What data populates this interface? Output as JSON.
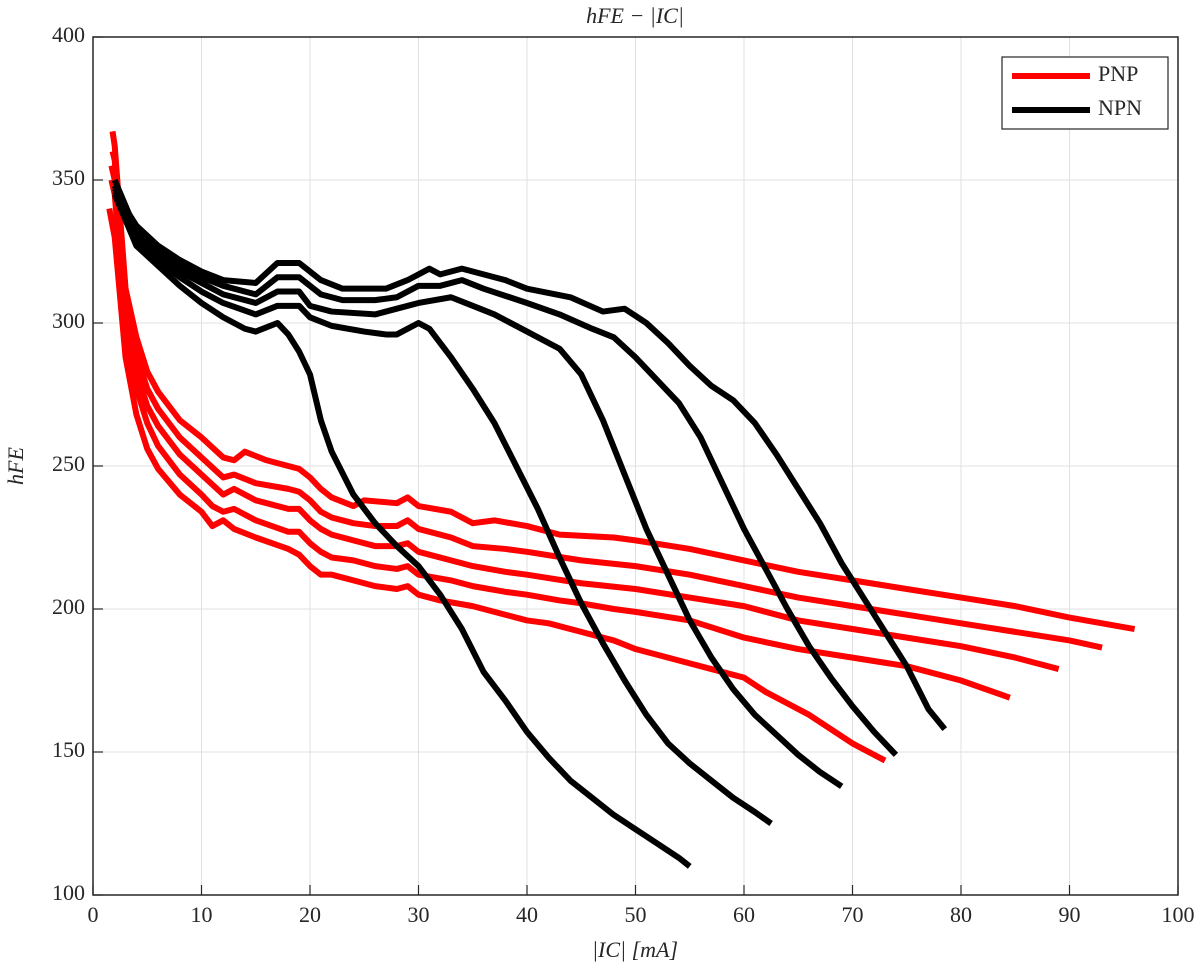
{
  "chart_data": {
    "type": "line",
    "title": "hFE − |IC|",
    "xlabel": "|IC| [mA]",
    "ylabel": "hFE",
    "xlim": [
      0,
      100
    ],
    "xticks": [
      0,
      10,
      20,
      30,
      40,
      50,
      60,
      70,
      80,
      90,
      100
    ],
    "ylim": [
      100,
      400
    ],
    "yticks": [
      100,
      150,
      200,
      250,
      300,
      350,
      400
    ],
    "grid": true,
    "legend": "upper right",
    "series": [
      {
        "name": "PNP",
        "color": "#ff0000",
        "x": [
          1.5,
          2,
          3,
          4,
          5,
          6,
          8,
          10,
          11,
          12,
          13,
          15,
          18,
          19,
          20,
          21,
          22,
          24,
          26,
          28,
          29,
          30,
          32,
          35,
          38,
          40,
          42,
          45,
          48,
          50,
          52,
          55,
          58,
          60,
          62,
          64,
          66,
          68,
          70,
          72,
          73
        ],
        "values": [
          340,
          330,
          288,
          268,
          256,
          249,
          240,
          234,
          229,
          231,
          228,
          225,
          221,
          219,
          215,
          212,
          212,
          210,
          208,
          207,
          208,
          205,
          203,
          201,
          198,
          196,
          195,
          192,
          189,
          186,
          184,
          181,
          178,
          176,
          171,
          167,
          163,
          158,
          153,
          149,
          147
        ]
      },
      {
        "name": "PNP",
        "color": "#ff0000",
        "x": [
          1.7,
          2,
          3,
          4,
          5,
          6,
          8,
          10,
          11,
          12,
          13,
          15,
          18,
          19,
          20,
          21,
          22,
          24,
          26,
          28,
          29,
          30,
          33,
          35,
          38,
          40,
          43,
          45,
          48,
          50,
          55,
          60,
          65,
          70,
          75,
          80,
          84.5
        ],
        "values": [
          350,
          345,
          300,
          277,
          265,
          257,
          247,
          240,
          236,
          234,
          235,
          231,
          227,
          227,
          223,
          220,
          218,
          217,
          215,
          214,
          215,
          212,
          210,
          208,
          206,
          205,
          203,
          202,
          200,
          199,
          196,
          190,
          186,
          183,
          180,
          175,
          169
        ]
      },
      {
        "name": "PNP",
        "color": "#ff0000",
        "x": [
          1.7,
          2,
          3,
          4,
          5,
          6,
          8,
          10,
          12,
          13,
          15,
          18,
          19,
          20,
          21,
          22,
          24,
          26,
          28,
          29,
          30,
          33,
          35,
          38,
          40,
          45,
          50,
          55,
          60,
          65,
          70,
          75,
          80,
          85,
          89
        ],
        "values": [
          355,
          350,
          305,
          283,
          271,
          264,
          254,
          247,
          240,
          242,
          238,
          235,
          235,
          231,
          228,
          226,
          224,
          222,
          222,
          223,
          220,
          217,
          215,
          213,
          212,
          209,
          207,
          204,
          201,
          196,
          193,
          190,
          187,
          183,
          179
        ]
      },
      {
        "name": "PNP",
        "color": "#ff0000",
        "x": [
          1.8,
          2,
          3,
          4,
          5,
          6,
          8,
          10,
          12,
          13,
          15,
          18,
          19,
          20,
          21,
          22,
          24,
          26,
          28,
          29,
          30,
          33,
          35,
          38,
          40,
          45,
          50,
          55,
          60,
          65,
          70,
          75,
          80,
          85,
          90,
          93
        ],
        "values": [
          360,
          357,
          309,
          289,
          277,
          270,
          260,
          253,
          246,
          247,
          244,
          242,
          241,
          238,
          234,
          232,
          230,
          229,
          229,
          231,
          228,
          225,
          222,
          221,
          220,
          217,
          215,
          212,
          208,
          204,
          201,
          198,
          195,
          192,
          189,
          186.5
        ]
      },
      {
        "name": "PNP",
        "color": "#ff0000",
        "x": [
          1.8,
          2,
          3,
          4,
          5,
          6,
          8,
          10,
          12,
          13,
          14,
          16,
          18,
          19,
          20,
          21,
          22,
          24,
          25,
          28,
          29,
          30,
          33,
          35,
          37,
          40,
          43,
          48,
          50,
          55,
          60,
          65,
          70,
          75,
          80,
          85,
          90,
          93,
          96
        ],
        "values": [
          367,
          362,
          312,
          295,
          283,
          276,
          266,
          260,
          253,
          252,
          255,
          252,
          250,
          249,
          246,
          242,
          239,
          236,
          238,
          237,
          239,
          236,
          234,
          230,
          231,
          229,
          226,
          225,
          224,
          221,
          217,
          213,
          210,
          207,
          204,
          201,
          197,
          195,
          193
        ]
      },
      {
        "name": "NPN",
        "color": "#000000",
        "x": [
          2,
          4,
          6,
          8,
          10,
          12,
          14,
          15,
          17,
          18,
          19,
          20,
          21,
          22,
          24,
          26,
          28,
          30,
          32,
          34,
          36,
          38,
          40,
          42,
          44,
          46,
          48,
          50,
          52,
          54,
          55
        ],
        "values": [
          345,
          327,
          320,
          313,
          307,
          302,
          298,
          297,
          300,
          296,
          290,
          282,
          266,
          255,
          240,
          230,
          222,
          215,
          205,
          193,
          178,
          168,
          157,
          148,
          140,
          134,
          128,
          123,
          118,
          113,
          110
        ]
      },
      {
        "name": "NPN",
        "color": "#000000",
        "x": [
          2,
          4,
          6,
          8,
          10,
          12,
          15,
          17,
          19,
          20,
          22,
          25,
          27,
          28,
          30,
          31,
          33,
          35,
          37,
          39,
          41,
          43,
          45,
          47,
          49,
          51,
          53,
          55,
          57,
          59,
          61,
          62.5
        ],
        "values": [
          348,
          330,
          322,
          316,
          311,
          307,
          303,
          306,
          306,
          302,
          299,
          297,
          296,
          296,
          300,
          298,
          288,
          277,
          265,
          250,
          235,
          218,
          202,
          188,
          175,
          163,
          153,
          146,
          140,
          134,
          129,
          125
        ]
      },
      {
        "name": "NPN",
        "color": "#000000",
        "x": [
          2,
          4,
          6,
          8,
          10,
          12,
          15,
          17,
          19,
          20,
          22,
          26,
          28,
          30,
          33,
          35,
          37,
          40,
          43,
          45,
          47,
          49,
          51,
          53,
          55,
          57,
          59,
          61,
          63,
          65,
          67,
          69
        ],
        "values": [
          350,
          332,
          324,
          318,
          314,
          310,
          307,
          311,
          311,
          306,
          304,
          303,
          305,
          307,
          309,
          306,
          303,
          297,
          291,
          282,
          266,
          247,
          228,
          212,
          196,
          183,
          172,
          163,
          156,
          149,
          143,
          138
        ]
      },
      {
        "name": "NPN",
        "color": "#000000",
        "x": [
          2,
          4,
          6,
          8,
          10,
          12,
          15,
          17,
          19,
          21,
          23,
          26,
          28,
          30,
          32,
          34,
          36,
          40,
          43,
          46,
          48,
          50,
          52,
          54,
          56,
          58,
          60,
          62,
          64,
          66,
          68,
          70,
          72,
          74
        ],
        "values": [
          347,
          333,
          326,
          320,
          316,
          313,
          310,
          316,
          316,
          310,
          308,
          308,
          309,
          313,
          313,
          315,
          312,
          307,
          303,
          298,
          295,
          288,
          280,
          272,
          260,
          244,
          228,
          214,
          200,
          187,
          176,
          166,
          157,
          149
        ]
      },
      {
        "name": "NPN",
        "color": "#000000",
        "x": [
          2,
          4,
          6,
          8,
          10,
          12,
          15,
          17,
          19,
          21,
          23,
          27,
          29,
          31,
          32,
          34,
          36,
          38,
          40,
          44,
          47,
          49,
          51,
          53,
          55,
          57,
          59,
          61,
          63,
          65,
          67,
          69,
          71,
          73,
          75,
          77,
          78.5
        ],
        "values": [
          346,
          334,
          327,
          322,
          318,
          315,
          314,
          321,
          321,
          315,
          312,
          312,
          315,
          319,
          317,
          319,
          317,
          315,
          312,
          309,
          304,
          305,
          300,
          293,
          285,
          278,
          273,
          265,
          254,
          242,
          230,
          216,
          204,
          192,
          180,
          165,
          158
        ]
      }
    ]
  }
}
